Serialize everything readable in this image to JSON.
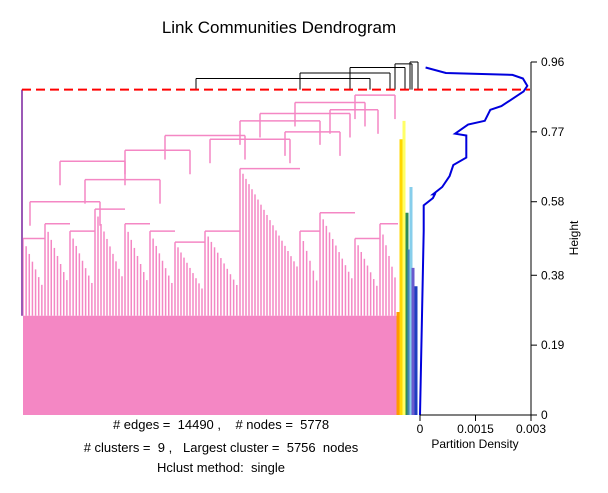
{
  "chart_data": {
    "type": "dendrogram",
    "title": "Link Communities Dendrogram",
    "stats": {
      "line1": "# edges =  14490 ,    # nodes =  5778",
      "line2": "# clusters =  9 ,   Largest cluster =  5756  nodes",
      "line3": "Hclust method:  single"
    },
    "height_axis": {
      "label": "Height",
      "ticks": [
        "0",
        "0.19",
        "0.38",
        "0.58",
        "0.77",
        "0.96"
      ],
      "range": [
        0,
        0.96
      ]
    },
    "density_axis": {
      "label": "Partition Density",
      "ticks": [
        "0",
        "0.0015",
        "0.003"
      ],
      "range": [
        0,
        0.003
      ]
    },
    "cut_height": 0.885,
    "colors": {
      "main_cluster": "#f487c4",
      "purple_cluster": "#9b59b6",
      "cut_line": "#ff0000",
      "density_curve": "#0000dd",
      "small_clusters": [
        "#ff9900",
        "#ffd700",
        "#ffff66",
        "#2e8b57",
        "#4682b4",
        "#87ceeb",
        "#6a5acd",
        "#1f3fbf"
      ]
    },
    "partition_density": [
      {
        "h": 0.945,
        "d": 0.00015
      },
      {
        "h": 0.93,
        "d": 0.0007
      },
      {
        "h": 0.925,
        "d": 0.0025
      },
      {
        "h": 0.915,
        "d": 0.00278
      },
      {
        "h": 0.895,
        "d": 0.0029
      },
      {
        "h": 0.88,
        "d": 0.0028
      },
      {
        "h": 0.86,
        "d": 0.0025
      },
      {
        "h": 0.84,
        "d": 0.0022
      },
      {
        "h": 0.83,
        "d": 0.0019
      },
      {
        "h": 0.8,
        "d": 0.00175
      },
      {
        "h": 0.79,
        "d": 0.0013
      },
      {
        "h": 0.765,
        "d": 0.00095
      },
      {
        "h": 0.76,
        "d": 0.00125
      },
      {
        "h": 0.7,
        "d": 0.00125
      },
      {
        "h": 0.68,
        "d": 0.0009
      },
      {
        "h": 0.65,
        "d": 0.0008
      },
      {
        "h": 0.62,
        "d": 0.0006
      },
      {
        "h": 0.6,
        "d": 0.00035
      },
      {
        "h": 0.6,
        "d": 0.0004
      },
      {
        "h": 0.59,
        "d": 0.00035
      },
      {
        "h": 0.57,
        "d": 0.0001
      },
      {
        "h": 0.5,
        "d": 0.0001
      },
      {
        "h": 0.0,
        "d": 0.0
      }
    ]
  }
}
